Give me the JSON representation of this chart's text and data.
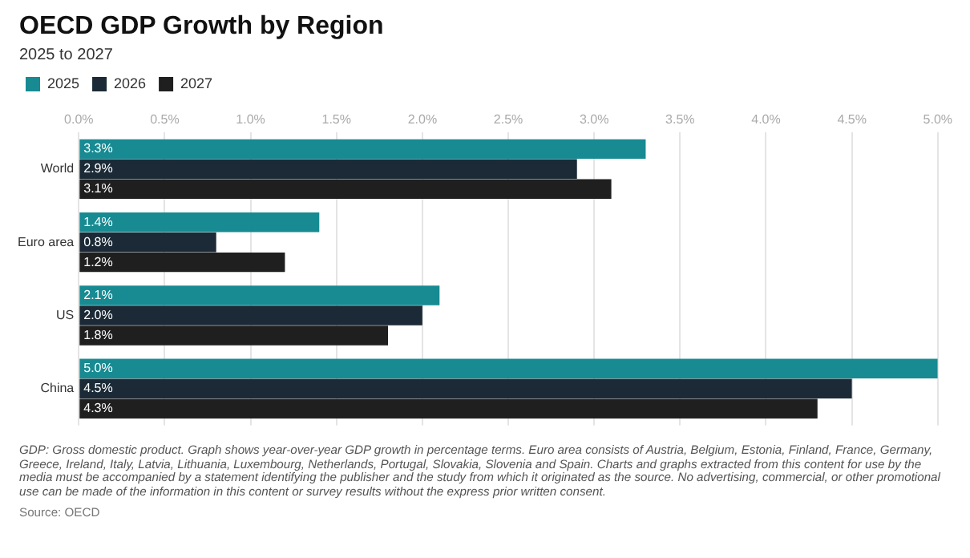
{
  "chart_data": {
    "type": "bar",
    "orientation": "horizontal",
    "title": "OECD GDP Growth by Region",
    "subtitle": "2025 to 2027",
    "categories": [
      "World",
      "Euro area",
      "US",
      "China"
    ],
    "series": [
      {
        "name": "2025",
        "color": "#178a92",
        "values": [
          3.3,
          1.4,
          2.1,
          5.0
        ],
        "value_labels": [
          "3.3%",
          "1.4%",
          "2.1%",
          "5.0%"
        ]
      },
      {
        "name": "2026",
        "color": "#1b2a36",
        "values": [
          2.9,
          0.8,
          2.0,
          4.5
        ],
        "value_labels": [
          "2.9%",
          "0.8%",
          "2.0%",
          "4.5%"
        ]
      },
      {
        "name": "2027",
        "color": "#1f1f1f",
        "values": [
          3.1,
          1.2,
          1.8,
          4.3
        ],
        "value_labels": [
          "3.1%",
          "1.2%",
          "1.8%",
          "4.3%"
        ]
      }
    ],
    "xlim": [
      0,
      5
    ],
    "xticks": [
      {
        "value": 0,
        "label": "0.0%"
      },
      {
        "value": 0.5,
        "label": "0.5%"
      },
      {
        "value": 1,
        "label": "1.0%"
      },
      {
        "value": 1.5,
        "label": "1.5%"
      },
      {
        "value": 2,
        "label": "2.0%"
      },
      {
        "value": 2.5,
        "label": "2.5%"
      },
      {
        "value": 3,
        "label": "3.0%"
      },
      {
        "value": 3.5,
        "label": "3.5%"
      },
      {
        "value": 4,
        "label": "4.0%"
      },
      {
        "value": 4.5,
        "label": "4.5%"
      },
      {
        "value": 5,
        "label": "5.0%"
      }
    ],
    "grid": "x",
    "legend": "top left",
    "annotations": [
      "GDP: Gross domestic product. Graph shows year-over-year GDP growth in percentage terms. Euro area consists of Austria, Belgium, Estonia, Finland, France, Germany, Greece, Ireland, Italy, Latvia, Lithuania, Luxembourg, Netherlands, Portugal, Slovakia, Slovenia and Spain. Charts and graphs extracted from this content for use by the media must be accompanied by a statement identifying the publisher and the study from which it originated as the source. No advertising, commercial, or other promotional use can be made of the information in this content or survey results without the express prior written consent.",
      "Source: OECD"
    ]
  }
}
